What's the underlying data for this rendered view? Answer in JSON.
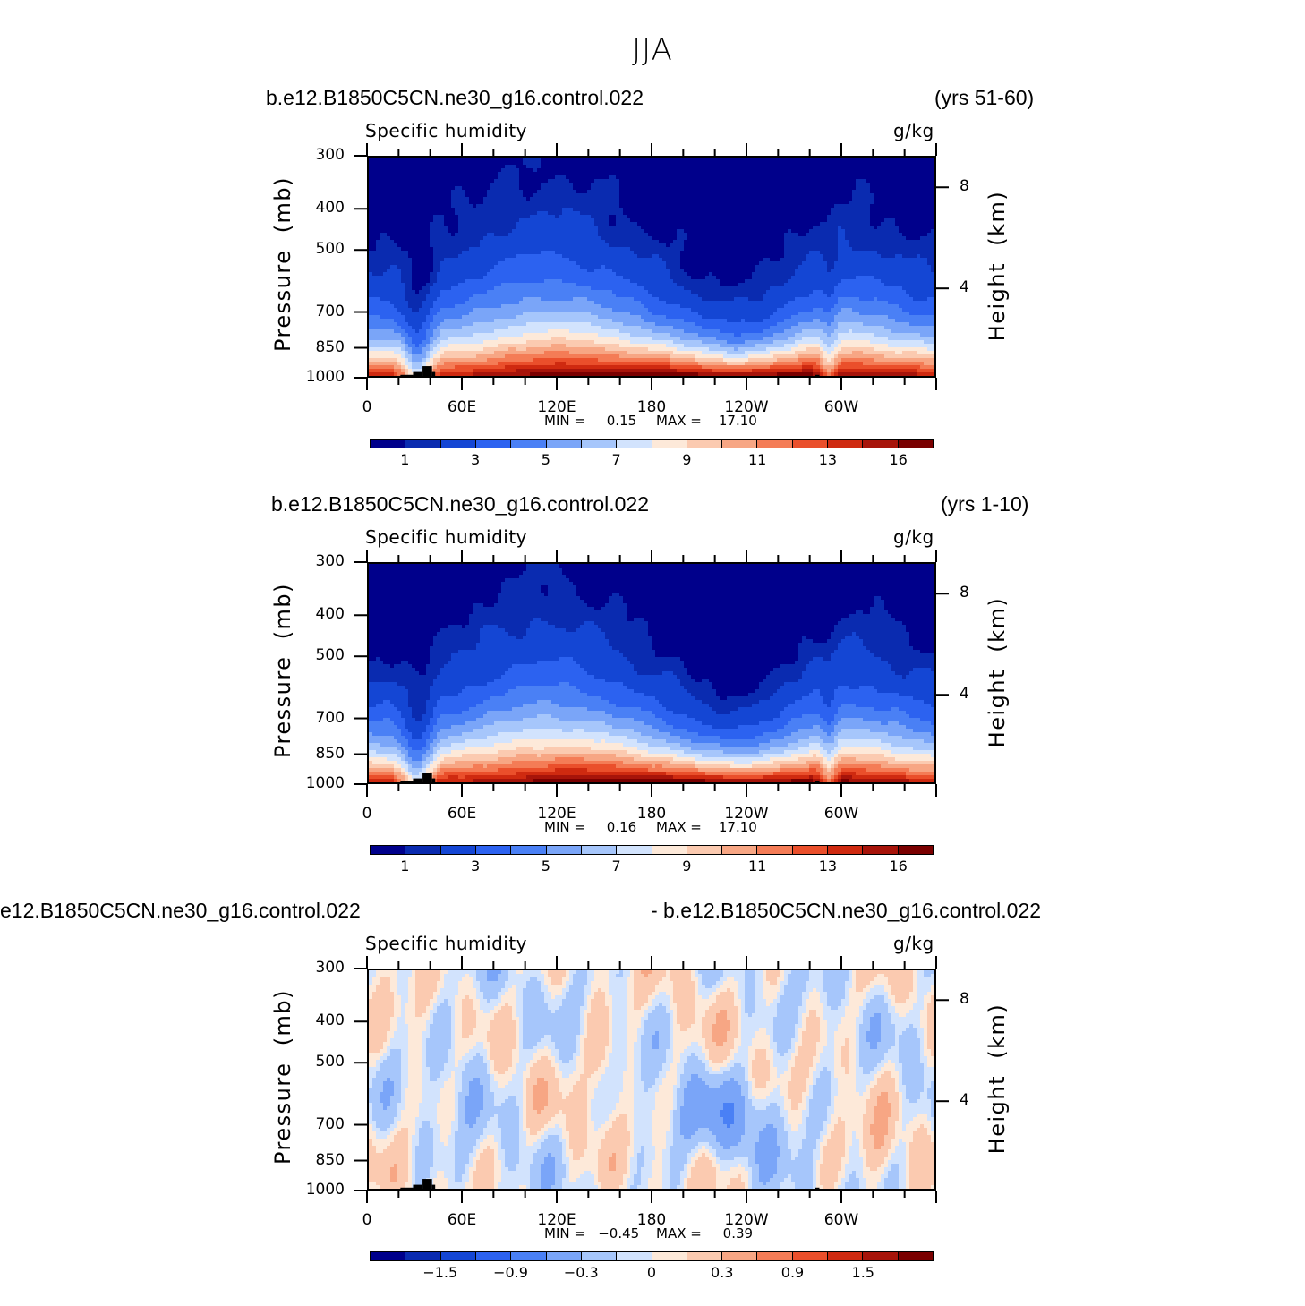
{
  "page": {
    "title": "JJA"
  },
  "panels": [
    {
      "run_left": "b.e12.B1850C5CN.ne30_g16.control.022",
      "run_right": "(yrs 51-60)",
      "variable": "Specific humidity",
      "units": "g/kg",
      "min_text": "MIN =     0.15",
      "max_text": "MAX =    17.10",
      "kind": "abs"
    },
    {
      "run_left": "b.e12.B1850C5CN.ne30_g16.control.022",
      "run_right": "(yrs 1-10)",
      "variable": "Specific humidity",
      "units": "g/kg",
      "min_text": "MIN =     0.16",
      "max_text": "MAX =    17.10",
      "kind": "abs"
    },
    {
      "run_left": "e12.B1850C5CN.ne30_g16.control.022",
      "run_right": "- b.e12.B1850C5CN.ne30_g16.control.022",
      "variable": "Specific humidity",
      "units": "g/kg",
      "min_text": "MIN =   −0.45",
      "max_text": "MAX =     0.39",
      "kind": "diff"
    }
  ],
  "axes": {
    "ylabel": "Pressure  (mb)",
    "ylabel_right": "Height  (km)",
    "yticks": [
      "300",
      "400",
      "500",
      "700",
      "850",
      "1000"
    ],
    "yticks_right": [
      "8",
      "4"
    ],
    "xticks": [
      "0",
      "60E",
      "120E",
      "180",
      "120W",
      "60W"
    ]
  },
  "colorbars": {
    "abs": {
      "colors": [
        "#00008b",
        "#0a2bb0",
        "#1446d4",
        "#2c62f0",
        "#4a80f5",
        "#7aa5f8",
        "#a6c6fb",
        "#d2e3fd",
        "#fde9d9",
        "#fbcab0",
        "#f7a684",
        "#f47c56",
        "#ea4f2b",
        "#cf2a10",
        "#a7140a",
        "#7a0000"
      ],
      "labels": [
        "1",
        "3",
        "5",
        "7",
        "9",
        "11",
        "13",
        "16"
      ]
    },
    "diff": {
      "colors": [
        "#00008b",
        "#0a2bb0",
        "#1446d4",
        "#2c62f0",
        "#4a80f5",
        "#7aa5f8",
        "#a6c6fb",
        "#d2e3fd",
        "#fde9d9",
        "#fbcab0",
        "#f7a684",
        "#f47c56",
        "#ea4f2b",
        "#cf2a10",
        "#a7140a",
        "#7a0000"
      ],
      "labels": [
        "−1.5",
        "−0.9",
        "−0.3",
        "0",
        "0.3",
        "0.9",
        "1.5"
      ]
    }
  },
  "chart_data": [
    {
      "type": "heatmap",
      "title": "b.e12.B1850C5CN.ne30_g16.control.022 (yrs 51-60)",
      "subtitle": "Specific humidity",
      "units": "g/kg",
      "xlabel": "",
      "ylabel": "Pressure  (mb)",
      "ylabel_right": "Height  (km)",
      "x_ticks": [
        "0",
        "60E",
        "120E",
        "180",
        "120W",
        "60W"
      ],
      "xlim": [
        0,
        360
      ],
      "y_ticks": [
        300,
        400,
        500,
        700,
        850,
        1000
      ],
      "ylim": [
        1000,
        300
      ],
      "y_scale": "log",
      "levels": [
        0.5,
        1,
        2,
        3,
        4,
        5,
        6,
        7,
        8,
        9,
        10,
        11,
        12,
        13,
        14,
        16
      ],
      "min": 0.15,
      "max": 17.1
    },
    {
      "type": "heatmap",
      "title": "b.e12.B1850C5CN.ne30_g16.control.022 (yrs 1-10)",
      "subtitle": "Specific humidity",
      "units": "g/kg",
      "xlabel": "",
      "ylabel": "Pressure  (mb)",
      "ylabel_right": "Height  (km)",
      "x_ticks": [
        "0",
        "60E",
        "120E",
        "180",
        "120W",
        "60W"
      ],
      "xlim": [
        0,
        360
      ],
      "y_ticks": [
        300,
        400,
        500,
        700,
        850,
        1000
      ],
      "ylim": [
        1000,
        300
      ],
      "y_scale": "log",
      "levels": [
        0.5,
        1,
        2,
        3,
        4,
        5,
        6,
        7,
        8,
        9,
        10,
        11,
        12,
        13,
        14,
        16
      ],
      "min": 0.16,
      "max": 17.1
    },
    {
      "type": "heatmap",
      "title": "e12.B1850C5CN.ne30_g16.control.022 - b.e12.B1850C5CN.ne30_g16.control.022",
      "subtitle": "Specific humidity",
      "units": "g/kg",
      "xlabel": "",
      "ylabel": "Pressure  (mb)",
      "ylabel_right": "Height  (km)",
      "x_ticks": [
        "0",
        "60E",
        "120E",
        "180",
        "120W",
        "60W"
      ],
      "xlim": [
        0,
        360
      ],
      "y_ticks": [
        300,
        400,
        500,
        700,
        850,
        1000
      ],
      "ylim": [
        1000,
        300
      ],
      "y_scale": "log",
      "levels": [
        -1.8,
        -1.5,
        -1.2,
        -0.9,
        -0.6,
        -0.3,
        -0.1,
        0,
        0.1,
        0.3,
        0.6,
        0.9,
        1.2,
        1.5,
        1.8
      ],
      "min": -0.45,
      "max": 0.39
    }
  ]
}
